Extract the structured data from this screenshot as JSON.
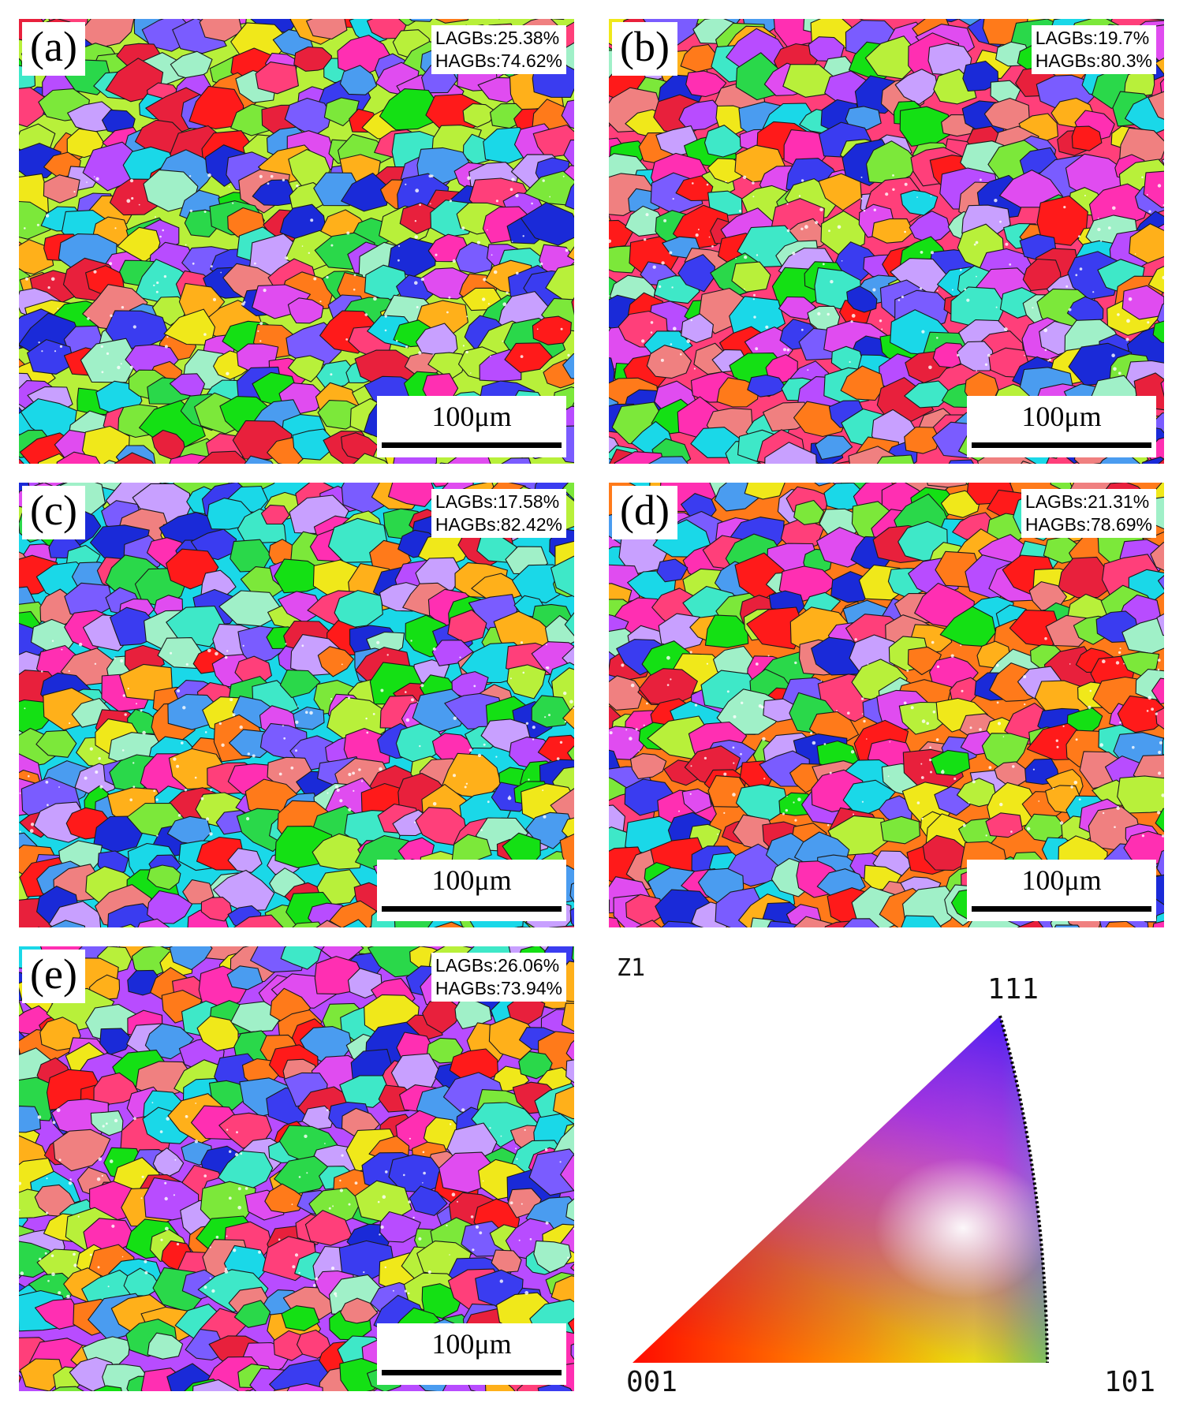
{
  "panels": [
    {
      "label": "(a)",
      "lagbs": "LAGBs:25.38%",
      "hagbs": "HAGBs:74.62%",
      "scale": "100μm"
    },
    {
      "label": "(b)",
      "lagbs": "LAGBs:19.7%",
      "hagbs": "HAGBs:80.3%",
      "scale": "100μm"
    },
    {
      "label": "(c)",
      "lagbs": "LAGBs:17.58%",
      "hagbs": "HAGBs:82.42%",
      "scale": "100μm"
    },
    {
      "label": "(d)",
      "lagbs": "LAGBs:21.31%",
      "hagbs": "HAGBs:78.69%",
      "scale": "100μm"
    },
    {
      "label": "(e)",
      "lagbs": "LAGBs:26.06%",
      "hagbs": "HAGBs:73.94%",
      "scale": "100μm"
    }
  ],
  "legend": {
    "axis": "Z1",
    "corner_001": "001",
    "corner_101": "101",
    "corner_111": "111"
  },
  "grain_palette": [
    "#ff1a1a",
    "#e8203c",
    "#ff3f7a",
    "#ff2fb2",
    "#e04cf0",
    "#b84cff",
    "#7a5cff",
    "#3a3cf0",
    "#1a2ad8",
    "#4a9cf0",
    "#1ad8e8",
    "#3ee8c8",
    "#14e014",
    "#2ad84a",
    "#7ce83a",
    "#b8f03a",
    "#f0e81a",
    "#ffb01a",
    "#ff7a1a",
    "#f08080",
    "#c8a0ff",
    "#a0f0c8"
  ]
}
